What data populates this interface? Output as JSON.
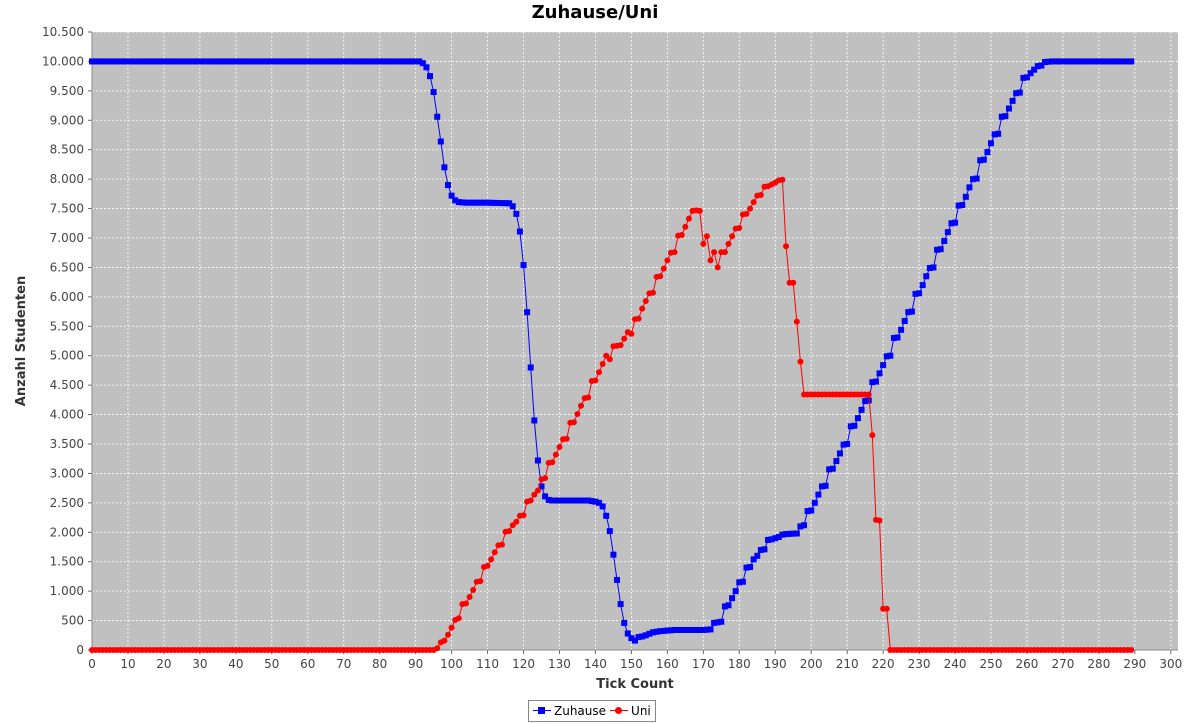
{
  "chart_data": {
    "type": "line",
    "title": "Zuhause/Uni",
    "xlabel": "Tick Count",
    "ylabel": "Anzahl Studenten",
    "xlim": [
      0,
      302
    ],
    "ylim": [
      0,
      10500
    ],
    "x_ticks": [
      0,
      10,
      20,
      30,
      40,
      50,
      60,
      70,
      80,
      90,
      100,
      110,
      120,
      130,
      140,
      150,
      160,
      170,
      180,
      190,
      200,
      210,
      220,
      230,
      240,
      250,
      260,
      270,
      280,
      290,
      300
    ],
    "y_ticks": [
      0,
      500,
      1000,
      1500,
      2000,
      2500,
      3000,
      3500,
      4000,
      4500,
      5000,
      5500,
      6000,
      6500,
      7000,
      7500,
      8000,
      8500,
      9000,
      9500,
      10000,
      10500
    ],
    "y_tick_labels": [
      "0",
      "500",
      "1.000",
      "1.500",
      "2.000",
      "2.500",
      "3.000",
      "3.500",
      "4.000",
      "4.500",
      "5.000",
      "5.500",
      "6.000",
      "6.500",
      "7.000",
      "7.500",
      "8.000",
      "8.500",
      "9.000",
      "9.500",
      "10.000",
      "10.500"
    ],
    "grid": true,
    "legend_position": "bottom",
    "background": "#c0c0c0",
    "series": [
      {
        "name": "Zuhause",
        "color": "#0000ff",
        "marker": "square",
        "points": [
          [
            0,
            10000
          ],
          [
            91,
            10000
          ],
          [
            92,
            9970
          ],
          [
            93,
            9900
          ],
          [
            94,
            9750
          ],
          [
            95,
            9480
          ],
          [
            96,
            9060
          ],
          [
            97,
            8640
          ],
          [
            98,
            8200
          ],
          [
            99,
            7900
          ],
          [
            100,
            7720
          ],
          [
            101,
            7640
          ],
          [
            102,
            7610
          ],
          [
            104,
            7600
          ],
          [
            110,
            7600
          ],
          [
            116,
            7590
          ],
          [
            117,
            7540
          ],
          [
            118,
            7410
          ],
          [
            119,
            7110
          ],
          [
            120,
            6540
          ],
          [
            121,
            5740
          ],
          [
            122,
            4800
          ],
          [
            123,
            3900
          ],
          [
            124,
            3220
          ],
          [
            125,
            2780
          ],
          [
            126,
            2610
          ],
          [
            127,
            2550
          ],
          [
            128,
            2540
          ],
          [
            138,
            2540
          ],
          [
            140,
            2520
          ],
          [
            141,
            2500
          ],
          [
            142,
            2440
          ],
          [
            143,
            2280
          ],
          [
            144,
            2020
          ],
          [
            145,
            1620
          ],
          [
            146,
            1190
          ],
          [
            147,
            780
          ],
          [
            148,
            460
          ],
          [
            149,
            280
          ],
          [
            150,
            200
          ],
          [
            151,
            160
          ],
          [
            152,
            220
          ],
          [
            153,
            230
          ],
          [
            154,
            250
          ],
          [
            156,
            300
          ],
          [
            158,
            320
          ],
          [
            160,
            330
          ],
          [
            162,
            340
          ],
          [
            170,
            340
          ],
          [
            172,
            350
          ],
          [
            173,
            460
          ],
          [
            175,
            480
          ],
          [
            176,
            740
          ],
          [
            177,
            760
          ],
          [
            178,
            880
          ],
          [
            179,
            1000
          ],
          [
            180,
            1150
          ],
          [
            181,
            1160
          ],
          [
            182,
            1400
          ],
          [
            183,
            1410
          ],
          [
            184,
            1540
          ],
          [
            185,
            1600
          ],
          [
            186,
            1700
          ],
          [
            187,
            1710
          ],
          [
            188,
            1870
          ],
          [
            189,
            1880
          ],
          [
            190,
            1900
          ],
          [
            191,
            1920
          ],
          [
            192,
            1960
          ],
          [
            193,
            1970
          ],
          [
            196,
            1980
          ],
          [
            197,
            2100
          ],
          [
            198,
            2120
          ],
          [
            199,
            2360
          ],
          [
            200,
            2370
          ],
          [
            201,
            2500
          ],
          [
            202,
            2640
          ],
          [
            203,
            2780
          ],
          [
            204,
            2790
          ],
          [
            205,
            3070
          ],
          [
            206,
            3080
          ],
          [
            207,
            3210
          ],
          [
            208,
            3340
          ],
          [
            209,
            3490
          ],
          [
            210,
            3500
          ],
          [
            211,
            3800
          ],
          [
            212,
            3810
          ],
          [
            213,
            3940
          ],
          [
            214,
            4080
          ],
          [
            215,
            4230
          ],
          [
            216,
            4240
          ],
          [
            217,
            4550
          ],
          [
            218,
            4560
          ],
          [
            219,
            4700
          ],
          [
            220,
            4840
          ],
          [
            221,
            4990
          ],
          [
            222,
            5000
          ],
          [
            223,
            5300
          ],
          [
            224,
            5310
          ],
          [
            225,
            5440
          ],
          [
            226,
            5590
          ],
          [
            227,
            5740
          ],
          [
            228,
            5750
          ],
          [
            229,
            6050
          ],
          [
            230,
            6060
          ],
          [
            231,
            6200
          ],
          [
            232,
            6350
          ],
          [
            233,
            6490
          ],
          [
            234,
            6500
          ],
          [
            235,
            6800
          ],
          [
            236,
            6810
          ],
          [
            237,
            6950
          ],
          [
            238,
            7100
          ],
          [
            239,
            7250
          ],
          [
            240,
            7260
          ],
          [
            241,
            7550
          ],
          [
            242,
            7560
          ],
          [
            243,
            7700
          ],
          [
            244,
            7860
          ],
          [
            245,
            8000
          ],
          [
            246,
            8010
          ],
          [
            247,
            8320
          ],
          [
            248,
            8330
          ],
          [
            249,
            8460
          ],
          [
            250,
            8610
          ],
          [
            251,
            8760
          ],
          [
            252,
            8770
          ],
          [
            253,
            9060
          ],
          [
            254,
            9070
          ],
          [
            255,
            9200
          ],
          [
            256,
            9330
          ],
          [
            257,
            9460
          ],
          [
            258,
            9470
          ],
          [
            259,
            9720
          ],
          [
            260,
            9730
          ],
          [
            261,
            9800
          ],
          [
            262,
            9860
          ],
          [
            263,
            9920
          ],
          [
            264,
            9930
          ],
          [
            265,
            9990
          ],
          [
            267,
            10000
          ],
          [
            289,
            10000
          ]
        ]
      },
      {
        "name": "Uni",
        "color": "#ff0000",
        "marker": "circle",
        "points": [
          [
            0,
            0
          ],
          [
            95,
            0
          ],
          [
            96,
            30
          ],
          [
            97,
            130
          ],
          [
            98,
            160
          ],
          [
            99,
            260
          ],
          [
            100,
            380
          ],
          [
            101,
            510
          ],
          [
            102,
            540
          ],
          [
            103,
            780
          ],
          [
            104,
            790
          ],
          [
            105,
            900
          ],
          [
            106,
            1020
          ],
          [
            107,
            1160
          ],
          [
            108,
            1170
          ],
          [
            109,
            1410
          ],
          [
            110,
            1430
          ],
          [
            111,
            1540
          ],
          [
            112,
            1660
          ],
          [
            113,
            1780
          ],
          [
            114,
            1790
          ],
          [
            115,
            2010
          ],
          [
            116,
            2020
          ],
          [
            117,
            2120
          ],
          [
            118,
            2180
          ],
          [
            119,
            2280
          ],
          [
            120,
            2290
          ],
          [
            121,
            2520
          ],
          [
            122,
            2540
          ],
          [
            123,
            2640
          ],
          [
            124,
            2710
          ],
          [
            125,
            2900
          ],
          [
            126,
            2920
          ],
          [
            127,
            3180
          ],
          [
            128,
            3190
          ],
          [
            129,
            3320
          ],
          [
            130,
            3450
          ],
          [
            131,
            3580
          ],
          [
            132,
            3590
          ],
          [
            133,
            3860
          ],
          [
            134,
            3870
          ],
          [
            135,
            4010
          ],
          [
            136,
            4150
          ],
          [
            137,
            4280
          ],
          [
            138,
            4290
          ],
          [
            139,
            4570
          ],
          [
            140,
            4580
          ],
          [
            141,
            4720
          ],
          [
            142,
            4860
          ],
          [
            143,
            5000
          ],
          [
            144,
            4940
          ],
          [
            145,
            5160
          ],
          [
            146,
            5170
          ],
          [
            147,
            5180
          ],
          [
            148,
            5290
          ],
          [
            149,
            5400
          ],
          [
            150,
            5370
          ],
          [
            151,
            5620
          ],
          [
            152,
            5630
          ],
          [
            153,
            5800
          ],
          [
            154,
            5930
          ],
          [
            155,
            6060
          ],
          [
            156,
            6070
          ],
          [
            157,
            6340
          ],
          [
            158,
            6350
          ],
          [
            159,
            6480
          ],
          [
            160,
            6620
          ],
          [
            161,
            6750
          ],
          [
            162,
            6760
          ],
          [
            163,
            7040
          ],
          [
            164,
            7050
          ],
          [
            165,
            7190
          ],
          [
            166,
            7330
          ],
          [
            167,
            7460
          ],
          [
            168,
            7470
          ],
          [
            169,
            7460
          ],
          [
            170,
            6900
          ],
          [
            171,
            7030
          ],
          [
            172,
            6620
          ],
          [
            173,
            6760
          ],
          [
            174,
            6500
          ],
          [
            175,
            6760
          ],
          [
            176,
            6760
          ],
          [
            177,
            6900
          ],
          [
            178,
            7030
          ],
          [
            179,
            7160
          ],
          [
            180,
            7170
          ],
          [
            181,
            7400
          ],
          [
            182,
            7410
          ],
          [
            183,
            7500
          ],
          [
            184,
            7610
          ],
          [
            185,
            7720
          ],
          [
            186,
            7730
          ],
          [
            187,
            7870
          ],
          [
            188,
            7880
          ],
          [
            189,
            7910
          ],
          [
            190,
            7940
          ],
          [
            191,
            7980
          ],
          [
            192,
            7990
          ],
          [
            193,
            6860
          ],
          [
            194,
            6240
          ],
          [
            195,
            6240
          ],
          [
            196,
            5580
          ],
          [
            197,
            4900
          ],
          [
            198,
            4340
          ],
          [
            200,
            4340
          ],
          [
            210,
            4340
          ],
          [
            216,
            4340
          ],
          [
            217,
            3650
          ],
          [
            218,
            2210
          ],
          [
            219,
            2200
          ],
          [
            220,
            700
          ],
          [
            221,
            700
          ],
          [
            222,
            0
          ],
          [
            289,
            0
          ]
        ]
      }
    ]
  }
}
